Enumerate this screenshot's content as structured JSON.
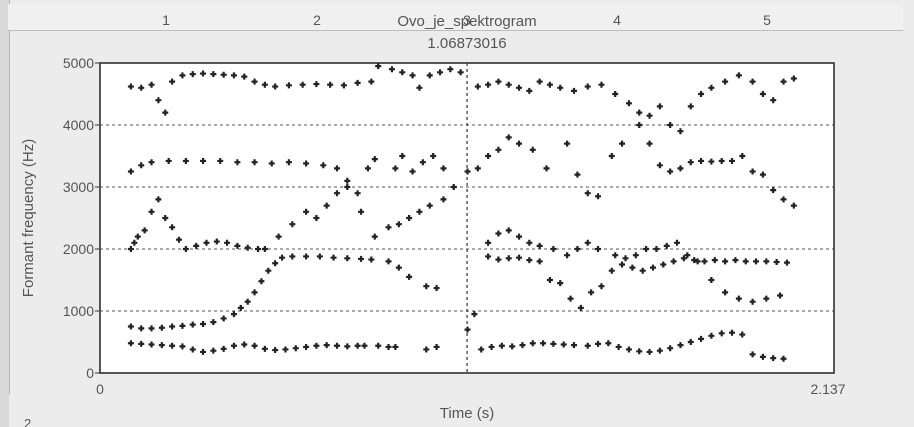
{
  "ruler": {
    "ticks": [
      "1",
      "2",
      "3",
      "4",
      "5"
    ]
  },
  "title": "Ovo_je_spektrogram",
  "cursor_time": "1.06873016",
  "corner_mark": "2",
  "chart_data": {
    "type": "scatter",
    "title": "Ovo_je_spektrogram",
    "xlabel": "Time (s)",
    "ylabel": "Formant frequency (Hz)",
    "xlim": [
      0,
      2.137
    ],
    "ylim": [
      0,
      5000
    ],
    "x_tick_labels": [
      "0",
      "2.137"
    ],
    "y_ticks": [
      0,
      1000,
      2000,
      3000,
      4000,
      5000
    ],
    "y_tick_labels": [
      "0",
      "1000",
      "2000",
      "3000",
      "4000",
      "5000"
    ],
    "cursor_x": 1.06873016,
    "grid": true,
    "marker": "plus",
    "color": "#222222",
    "series": [
      {
        "values": [
          [
            0.09,
            480
          ],
          [
            0.12,
            470
          ],
          [
            0.15,
            460
          ],
          [
            0.18,
            450
          ],
          [
            0.21,
            440
          ],
          [
            0.24,
            430
          ],
          [
            0.27,
            380
          ],
          [
            0.3,
            340
          ],
          [
            0.33,
            360
          ],
          [
            0.36,
            390
          ],
          [
            0.39,
            440
          ],
          [
            0.42,
            460
          ],
          [
            0.45,
            440
          ],
          [
            0.48,
            390
          ],
          [
            0.51,
            370
          ],
          [
            0.54,
            380
          ],
          [
            0.57,
            400
          ],
          [
            0.6,
            420
          ],
          [
            0.63,
            440
          ],
          [
            0.66,
            450
          ],
          [
            0.69,
            440
          ],
          [
            0.72,
            430
          ],
          [
            0.75,
            440
          ],
          [
            0.77,
            440
          ],
          [
            0.81,
            440
          ],
          [
            0.84,
            420
          ],
          [
            0.86,
            420
          ],
          [
            0.95,
            380
          ],
          [
            0.98,
            420
          ],
          [
            1.11,
            380
          ],
          [
            1.14,
            420
          ],
          [
            1.17,
            440
          ],
          [
            1.2,
            430
          ],
          [
            1.23,
            450
          ],
          [
            1.26,
            480
          ],
          [
            1.29,
            480
          ],
          [
            1.32,
            470
          ],
          [
            1.35,
            460
          ],
          [
            1.38,
            450
          ],
          [
            1.42,
            440
          ],
          [
            1.45,
            470
          ],
          [
            1.48,
            480
          ],
          [
            1.51,
            420
          ],
          [
            1.54,
            380
          ],
          [
            1.57,
            350
          ],
          [
            1.6,
            340
          ],
          [
            1.63,
            360
          ],
          [
            1.66,
            400
          ],
          [
            1.69,
            450
          ],
          [
            1.72,
            500
          ],
          [
            1.75,
            550
          ],
          [
            1.78,
            600
          ],
          [
            1.81,
            640
          ],
          [
            1.84,
            650
          ],
          [
            1.87,
            620
          ],
          [
            1.9,
            300
          ],
          [
            1.93,
            260
          ],
          [
            1.96,
            240
          ],
          [
            1.99,
            230
          ]
        ]
      },
      {
        "values": [
          [
            0.09,
            750
          ],
          [
            0.12,
            720
          ],
          [
            0.15,
            720
          ],
          [
            0.18,
            730
          ],
          [
            0.21,
            750
          ],
          [
            0.24,
            760
          ],
          [
            0.27,
            780
          ],
          [
            0.3,
            790
          ],
          [
            0.33,
            820
          ],
          [
            0.36,
            880
          ],
          [
            0.39,
            950
          ],
          [
            0.41,
            1050
          ],
          [
            0.43,
            1150
          ],
          [
            0.45,
            1300
          ],
          [
            0.47,
            1480
          ],
          [
            0.49,
            1650
          ],
          [
            0.51,
            1770
          ],
          [
            0.53,
            1860
          ],
          [
            0.56,
            1880
          ],
          [
            0.6,
            1880
          ],
          [
            0.64,
            1880
          ],
          [
            0.68,
            1860
          ],
          [
            0.72,
            1850
          ],
          [
            0.76,
            1840
          ],
          [
            0.79,
            1830
          ],
          [
            0.84,
            1800
          ],
          [
            0.87,
            1700
          ],
          [
            0.9,
            1550
          ],
          [
            0.95,
            1400
          ],
          [
            0.98,
            1370
          ],
          [
            1.07,
            700
          ],
          [
            1.09,
            950
          ],
          [
            1.13,
            1880
          ],
          [
            1.16,
            1830
          ],
          [
            1.19,
            1850
          ],
          [
            1.22,
            1860
          ],
          [
            1.25,
            1820
          ],
          [
            1.28,
            1800
          ],
          [
            1.31,
            1500
          ],
          [
            1.34,
            1450
          ],
          [
            1.37,
            1200
          ],
          [
            1.4,
            1050
          ],
          [
            1.43,
            1300
          ],
          [
            1.46,
            1400
          ],
          [
            1.49,
            1650
          ],
          [
            1.52,
            1750
          ],
          [
            1.55,
            1700
          ],
          [
            1.58,
            1650
          ],
          [
            1.61,
            1700
          ],
          [
            1.64,
            1750
          ],
          [
            1.67,
            1800
          ],
          [
            1.7,
            1850
          ],
          [
            1.73,
            1820
          ],
          [
            1.76,
            1800
          ],
          [
            1.79,
            1820
          ],
          [
            1.82,
            1800
          ],
          [
            1.85,
            1820
          ],
          [
            1.88,
            1800
          ],
          [
            1.91,
            1800
          ],
          [
            1.94,
            1800
          ],
          [
            1.97,
            1790
          ],
          [
            2.0,
            1780
          ]
        ]
      },
      {
        "values": [
          [
            0.09,
            2000
          ],
          [
            0.1,
            2100
          ],
          [
            0.11,
            2200
          ],
          [
            0.13,
            2300
          ],
          [
            0.15,
            2600
          ],
          [
            0.17,
            2800
          ],
          [
            0.19,
            2500
          ],
          [
            0.21,
            2350
          ],
          [
            0.23,
            2150
          ],
          [
            0.25,
            2000
          ],
          [
            0.28,
            2050
          ],
          [
            0.31,
            2100
          ],
          [
            0.34,
            2120
          ],
          [
            0.37,
            2100
          ],
          [
            0.4,
            2050
          ],
          [
            0.43,
            2020
          ],
          [
            0.46,
            2000
          ],
          [
            0.48,
            2000
          ],
          [
            0.52,
            2200
          ],
          [
            0.56,
            2400
          ],
          [
            0.6,
            2600
          ],
          [
            0.63,
            2500
          ],
          [
            0.66,
            2700
          ],
          [
            0.69,
            2900
          ],
          [
            0.72,
            3000
          ],
          [
            0.76,
            2600
          ],
          [
            0.8,
            2200
          ],
          [
            0.84,
            2350
          ],
          [
            0.87,
            2400
          ],
          [
            0.9,
            2500
          ],
          [
            0.93,
            2600
          ],
          [
            0.96,
            2700
          ],
          [
            1.0,
            2800
          ],
          [
            1.13,
            2100
          ],
          [
            1.16,
            2250
          ],
          [
            1.19,
            2300
          ],
          [
            1.22,
            2200
          ],
          [
            1.25,
            2100
          ],
          [
            1.28,
            2050
          ],
          [
            1.32,
            2000
          ],
          [
            1.36,
            1900
          ],
          [
            1.39,
            2000
          ],
          [
            1.42,
            2100
          ],
          [
            1.45,
            2000
          ],
          [
            1.5,
            1900
          ],
          [
            1.53,
            1850
          ],
          [
            1.56,
            1900
          ],
          [
            1.59,
            2000
          ],
          [
            1.62,
            2000
          ],
          [
            1.65,
            2050
          ],
          [
            1.68,
            2100
          ],
          [
            1.71,
            1900
          ],
          [
            1.74,
            1800
          ],
          [
            1.78,
            1500
          ],
          [
            1.82,
            1300
          ],
          [
            1.86,
            1200
          ],
          [
            1.9,
            1150
          ],
          [
            1.94,
            1200
          ],
          [
            1.98,
            1250
          ]
        ]
      },
      {
        "values": [
          [
            0.09,
            3250
          ],
          [
            0.12,
            3350
          ],
          [
            0.15,
            3400
          ],
          [
            0.2,
            3420
          ],
          [
            0.25,
            3420
          ],
          [
            0.3,
            3420
          ],
          [
            0.35,
            3420
          ],
          [
            0.4,
            3400
          ],
          [
            0.45,
            3400
          ],
          [
            0.5,
            3380
          ],
          [
            0.55,
            3400
          ],
          [
            0.6,
            3380
          ],
          [
            0.65,
            3350
          ],
          [
            0.69,
            3300
          ],
          [
            0.72,
            3100
          ],
          [
            0.75,
            2900
          ],
          [
            0.78,
            3300
          ],
          [
            0.8,
            3450
          ],
          [
            0.86,
            3300
          ],
          [
            0.88,
            3500
          ],
          [
            0.91,
            3250
          ],
          [
            0.94,
            3400
          ],
          [
            0.97,
            3500
          ],
          [
            1.0,
            3300
          ],
          [
            1.03,
            3000
          ],
          [
            1.07,
            3250
          ],
          [
            1.1,
            3300
          ],
          [
            1.13,
            3500
          ],
          [
            1.16,
            3600
          ],
          [
            1.19,
            3800
          ],
          [
            1.22,
            3700
          ],
          [
            1.26,
            3600
          ],
          [
            1.3,
            3300
          ],
          [
            1.36,
            3700
          ],
          [
            1.39,
            3200
          ],
          [
            1.42,
            2900
          ],
          [
            1.45,
            2850
          ],
          [
            1.49,
            3500
          ],
          [
            1.52,
            3700
          ],
          [
            1.57,
            4000
          ],
          [
            1.6,
            3700
          ],
          [
            1.63,
            3350
          ],
          [
            1.66,
            3250
          ],
          [
            1.69,
            3300
          ],
          [
            1.72,
            3400
          ],
          [
            1.75,
            3420
          ],
          [
            1.78,
            3410
          ],
          [
            1.81,
            3420
          ],
          [
            1.84,
            3420
          ],
          [
            1.87,
            3500
          ],
          [
            1.9,
            3250
          ],
          [
            1.93,
            3200
          ],
          [
            1.96,
            2950
          ],
          [
            1.99,
            2800
          ],
          [
            2.02,
            2700
          ]
        ]
      },
      {
        "values": [
          [
            0.09,
            4620
          ],
          [
            0.12,
            4600
          ],
          [
            0.15,
            4650
          ],
          [
            0.17,
            4400
          ],
          [
            0.19,
            4200
          ],
          [
            0.21,
            4700
          ],
          [
            0.24,
            4800
          ],
          [
            0.27,
            4820
          ],
          [
            0.3,
            4830
          ],
          [
            0.33,
            4820
          ],
          [
            0.36,
            4810
          ],
          [
            0.39,
            4800
          ],
          [
            0.42,
            4780
          ],
          [
            0.45,
            4700
          ],
          [
            0.48,
            4650
          ],
          [
            0.51,
            4620
          ],
          [
            0.55,
            4640
          ],
          [
            0.59,
            4650
          ],
          [
            0.63,
            4660
          ],
          [
            0.67,
            4650
          ],
          [
            0.71,
            4640
          ],
          [
            0.75,
            4680
          ],
          [
            0.79,
            4700
          ],
          [
            0.81,
            4950
          ],
          [
            0.85,
            4900
          ],
          [
            0.88,
            4850
          ],
          [
            0.91,
            4800
          ],
          [
            0.93,
            4600
          ],
          [
            0.96,
            4800
          ],
          [
            0.99,
            4850
          ],
          [
            1.02,
            4900
          ],
          [
            1.05,
            4850
          ],
          [
            1.1,
            4620
          ],
          [
            1.13,
            4650
          ],
          [
            1.16,
            4700
          ],
          [
            1.19,
            4650
          ],
          [
            1.22,
            4600
          ],
          [
            1.25,
            4550
          ],
          [
            1.28,
            4700
          ],
          [
            1.31,
            4650
          ],
          [
            1.34,
            4600
          ],
          [
            1.38,
            4550
          ],
          [
            1.42,
            4620
          ],
          [
            1.46,
            4650
          ],
          [
            1.5,
            4500
          ],
          [
            1.54,
            4350
          ],
          [
            1.57,
            4200
          ],
          [
            1.6,
            4150
          ],
          [
            1.63,
            4300
          ],
          [
            1.66,
            4000
          ],
          [
            1.69,
            3900
          ],
          [
            1.72,
            4300
          ],
          [
            1.75,
            4500
          ],
          [
            1.78,
            4600
          ],
          [
            1.82,
            4700
          ],
          [
            1.86,
            4800
          ],
          [
            1.9,
            4700
          ],
          [
            1.93,
            4500
          ],
          [
            1.96,
            4400
          ],
          [
            1.99,
            4700
          ],
          [
            2.02,
            4750
          ]
        ]
      }
    ]
  }
}
